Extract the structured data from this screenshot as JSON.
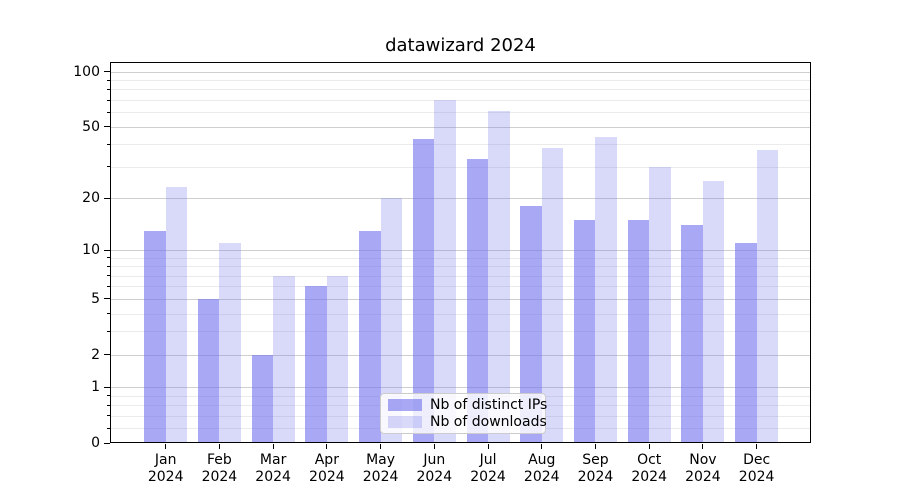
{
  "title": "datawizard 2024",
  "chart_data": {
    "type": "bar",
    "title": "datawizard 2024",
    "categories": [
      "Jan 2024",
      "Feb 2024",
      "Mar 2024",
      "Apr 2024",
      "May 2024",
      "Jun 2024",
      "Jul 2024",
      "Aug 2024",
      "Sep 2024",
      "Oct 2024",
      "Nov 2024",
      "Dec 2024"
    ],
    "x_tick_labels": [
      [
        "Jan",
        "2024"
      ],
      [
        "Feb",
        "2024"
      ],
      [
        "Mar",
        "2024"
      ],
      [
        "Apr",
        "2024"
      ],
      [
        "May",
        "2024"
      ],
      [
        "Jun",
        "2024"
      ],
      [
        "Jul",
        "2024"
      ],
      [
        "Aug",
        "2024"
      ],
      [
        "Sep",
        "2024"
      ],
      [
        "Oct",
        "2024"
      ],
      [
        "Nov",
        "2024"
      ],
      [
        "Dec",
        "2024"
      ]
    ],
    "series": [
      {
        "name": "Nb of distinct IPs",
        "values": [
          13,
          5,
          2,
          6,
          13,
          43,
          33,
          18,
          15,
          15,
          14,
          11
        ],
        "color": "rgba(115,115,237,0.62)"
      },
      {
        "name": "Nb of downloads",
        "values": [
          23,
          11,
          7,
          7,
          20,
          70,
          61,
          38,
          44,
          30,
          25,
          37
        ],
        "color": "rgba(115,115,237,0.27)"
      }
    ],
    "yscale": "log1p",
    "ylim": [
      0,
      113
    ],
    "y_major_ticks": [
      0,
      1,
      2,
      5,
      10,
      20,
      50,
      100
    ],
    "y_minor_ticks": [
      0.2,
      0.4,
      0.6,
      0.8,
      3,
      4,
      6,
      7,
      8,
      9,
      30,
      40,
      60,
      70,
      80,
      90
    ],
    "xlabel": "",
    "ylabel": "",
    "grid": "horizontal",
    "legend_position": "lower center"
  },
  "colors": {
    "bar_base": "#7373ed",
    "series_dark": "rgba(115,115,237,0.62)",
    "series_light": "rgba(115,115,237,0.27)",
    "grid_major": "#cfcfcf",
    "grid_minor": "#ebebeb",
    "axis": "#000000",
    "text": "#000000",
    "background": "#ffffff",
    "legend_bg": "rgba(255,255,255,0.8)",
    "legend_border": "#cccccc"
  }
}
